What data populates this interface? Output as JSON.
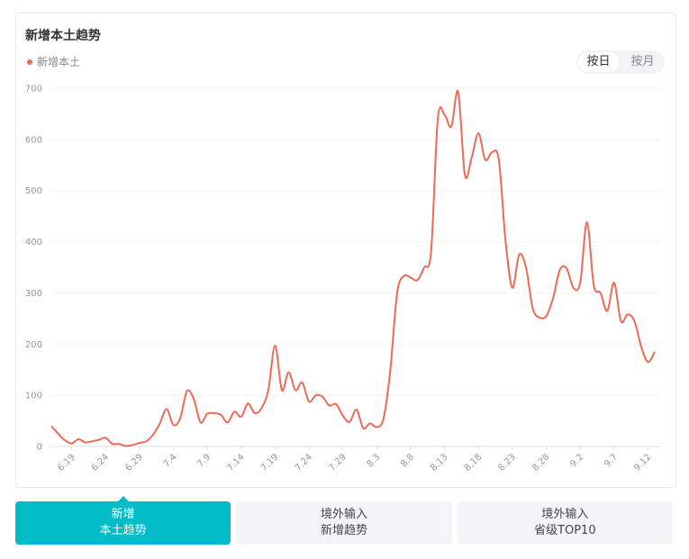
{
  "chart_data": {
    "type": "line",
    "title": "新增本土趋势",
    "categories": [
      null,
      null,
      null,
      "6.19",
      null,
      null,
      null,
      null,
      "6.24",
      null,
      null,
      null,
      null,
      "6.29",
      null,
      null,
      null,
      null,
      "7.4",
      null,
      null,
      null,
      null,
      "7.9",
      null,
      null,
      null,
      null,
      "7.14",
      null,
      null,
      null,
      null,
      "7.19",
      null,
      null,
      null,
      null,
      "7.24",
      null,
      null,
      null,
      null,
      "7.29",
      null,
      null,
      null,
      null,
      "8.3",
      null,
      null,
      null,
      null,
      "8.8",
      null,
      null,
      null,
      null,
      "8.13",
      null,
      null,
      null,
      null,
      "8.18",
      null,
      null,
      null,
      null,
      "8.23",
      null,
      null,
      null,
      null,
      "8.28",
      null,
      null,
      null,
      null,
      "9.2",
      null,
      null,
      null,
      null,
      "9.7",
      null,
      null,
      null,
      null,
      "9.12",
      null
    ],
    "series": [
      {
        "name": "新增本土",
        "color": "#ee6a55",
        "values": [
          40,
          25,
          12,
          6,
          14,
          8,
          10,
          13,
          17,
          5,
          5,
          1,
          3,
          7,
          10,
          23,
          45,
          73,
          42,
          55,
          108,
          93,
          47,
          64,
          65,
          62,
          47,
          68,
          58,
          84,
          65,
          75,
          110,
          197,
          110,
          145,
          110,
          125,
          88,
          100,
          97,
          80,
          83,
          60,
          48,
          72,
          36,
          45,
          38,
          55,
          150,
          300,
          333,
          330,
          325,
          350,
          380,
          640,
          648,
          625,
          693,
          530,
          565,
          612,
          560,
          575,
          560,
          400,
          310,
          375,
          350,
          270,
          252,
          255,
          290,
          345,
          348,
          310,
          320,
          438,
          315,
          300,
          265,
          320,
          245,
          258,
          245,
          195,
          165,
          185
        ]
      }
    ],
    "ylim": [
      0,
      700
    ],
    "yticks": [
      0,
      100,
      200,
      300,
      400,
      500,
      600,
      700
    ],
    "grid": true
  },
  "toggle": [
    {
      "label": "按日",
      "active": true
    },
    {
      "label": "按月",
      "active": false
    }
  ],
  "tabs": [
    {
      "line1": "新增",
      "line2": "本土趋势",
      "active": true
    },
    {
      "line1": "境外输入",
      "line2": "新增趋势",
      "active": false
    },
    {
      "line1": "境外输入",
      "line2": "省级TOP10",
      "active": false
    }
  ]
}
